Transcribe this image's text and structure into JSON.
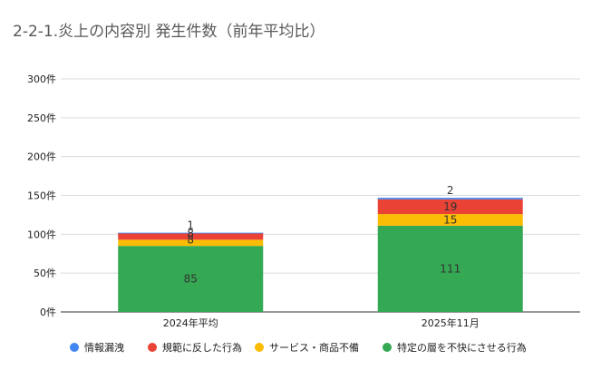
{
  "chart_data": {
    "type": "bar",
    "stacked": true,
    "title": "2-2-1.炎上の内容別 発生件数（前年平均比）",
    "xlabel": "",
    "ylabel": "",
    "categories": [
      "2024年平均",
      "2025年11月"
    ],
    "ylim": [
      0,
      300
    ],
    "yticks": [
      0,
      50,
      100,
      150,
      200,
      250,
      300
    ],
    "y_tick_suffix": "件",
    "grid": true,
    "legend_position": "bottom",
    "series": [
      {
        "name": "特定の層を不快にさせる行為",
        "values": [
          85,
          111
        ],
        "color": "#34a853"
      },
      {
        "name": "サービス・商品不備",
        "values": [
          8,
          15
        ],
        "color": "#fbbc04"
      },
      {
        "name": "規範に反した行為",
        "values": [
          8,
          19
        ],
        "color": "#ea4335"
      },
      {
        "name": "情報漏洩",
        "values": [
          1,
          2
        ],
        "color": "#4285f4"
      }
    ],
    "legend_order": [
      3,
      2,
      1,
      0
    ]
  }
}
